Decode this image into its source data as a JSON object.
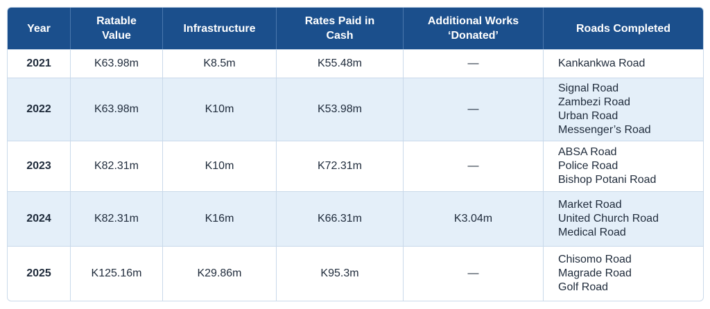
{
  "table": {
    "columns": [
      [
        "Year"
      ],
      [
        "Ratable",
        "Value"
      ],
      [
        "Infrastructure"
      ],
      [
        "Rates Paid in",
        "Cash"
      ],
      [
        "Additional Works",
        "‘Donated’"
      ],
      [
        "Roads Completed"
      ]
    ],
    "rows": [
      [
        "2021",
        "K63.98m",
        "K8.5m",
        "K55.48m",
        "—",
        [
          "Kankankwa Road"
        ]
      ],
      [
        "2022",
        "K63.98m",
        "K10m",
        "K53.98m",
        "—",
        [
          "Signal Road",
          "Zambezi Road",
          "Urban Road",
          "Messenger’s Road"
        ]
      ],
      [
        "2023",
        "K82.31m",
        "K10m",
        "K72.31m",
        "—",
        [
          "ABSA Road",
          "Police Road",
          "Bishop Potani Road"
        ]
      ],
      [
        "2024",
        "K82.31m",
        "K16m",
        "K66.31m",
        "K3.04m",
        [
          "Market Road",
          "United Church Road",
          "Medical Road"
        ]
      ],
      [
        "2025",
        "K125.16m",
        "K29.86m",
        "K95.3m",
        "—",
        [
          "Chisomo Road",
          "Magrade Road",
          "Golf Road"
        ]
      ]
    ]
  }
}
